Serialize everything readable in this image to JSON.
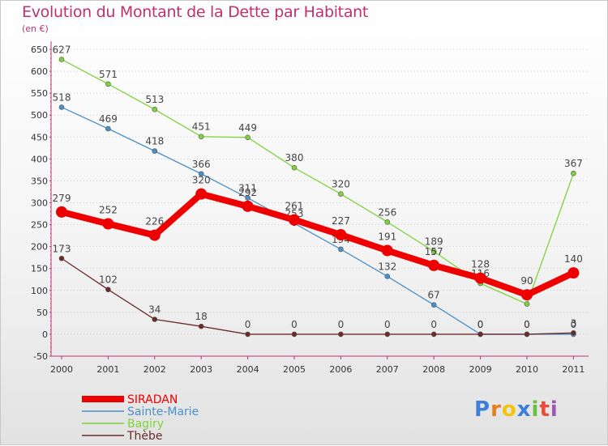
{
  "chart_data": {
    "type": "line",
    "title": "Evolution du Montant de la Dette par Habitant",
    "subtitle": "(en €)",
    "x": [
      "2000",
      "2001",
      "2002",
      "2003",
      "2004",
      "2005",
      "2006",
      "2007",
      "2008",
      "2009",
      "2010",
      "2011"
    ],
    "ylim": [
      -50,
      650
    ],
    "yticks": [
      -50,
      0,
      50,
      100,
      150,
      200,
      250,
      300,
      350,
      400,
      450,
      500,
      550,
      600,
      650
    ],
    "grid": "horizontal dotted",
    "legend_position": "bottom-left",
    "series": [
      {
        "name": "SIRADAN",
        "color": "#ee0000",
        "values": [
          279,
          252,
          226,
          320,
          292,
          261,
          227,
          191,
          157,
          128,
          90,
          140
        ]
      },
      {
        "name": "Sainte-Marie",
        "color": "#4a90c8",
        "values": [
          518,
          469,
          418,
          366,
          311,
          253,
          194,
          132,
          67,
          0,
          0,
          0
        ]
      },
      {
        "name": "Bagiry",
        "color": "#7fd23c",
        "values": [
          627,
          571,
          513,
          451,
          449,
          380,
          320,
          256,
          189,
          116,
          69,
          367
        ]
      },
      {
        "name": "Thèbe",
        "color": "#6b2a2a",
        "values": [
          173,
          102,
          34,
          18,
          0,
          0,
          0,
          0,
          0,
          0,
          0,
          3
        ]
      }
    ]
  },
  "logo_text": "Proxiti"
}
